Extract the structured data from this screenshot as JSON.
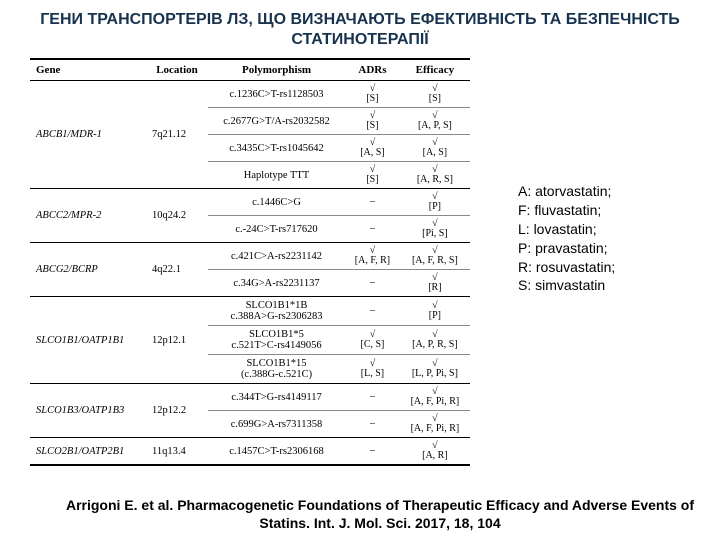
{
  "title": "ГЕНИ  ТРАНСПОРТЕРІВ ЛЗ, ЩО ВИЗНАЧАЮТЬ ЕФЕКТИВНІСТЬ ТА БЕЗПЕЧНІСТЬ СТАТИНОТЕРАПІЇ",
  "citation": "Arrigoni E. et al. Pharmacogenetic Foundations of Therapeutic Efficacy and Adverse Events of Statins. Int. J. Mol. Sci. 2017, 18, 104",
  "table": {
    "headers": {
      "gene": "Gene",
      "location": "Location",
      "polymorphism": "Polymorphism",
      "adrs": "ADRs",
      "efficacy": "Efficacy"
    },
    "symbols": {
      "check": "√",
      "dash": "–"
    },
    "rows": [
      {
        "gene": "ABCB1/MDR-1",
        "location": "7q21.12",
        "polymorphism": "c.1236C>T-rs1128503",
        "adrs_check": "√",
        "adrs_list": "[S]",
        "eff_check": "√",
        "eff_list": "[S]",
        "group_start": true,
        "rowspan": 4
      },
      {
        "polymorphism": "c.2677G>T/A-rs2032582",
        "adrs_check": "√",
        "adrs_list": "[S]",
        "eff_check": "√",
        "eff_list": "[A, P, S]"
      },
      {
        "polymorphism": "c.3435C>T-rs1045642",
        "adrs_check": "√",
        "adrs_list": "[A, S]",
        "eff_check": "√",
        "eff_list": "[A, S]"
      },
      {
        "polymorphism": "Haplotype TTT",
        "adrs_check": "√",
        "adrs_list": "[S]",
        "eff_check": "√",
        "eff_list": "[A, R, S]"
      },
      {
        "gene": "ABCC2/MPR-2",
        "location": "10q24.2",
        "polymorphism": "c.1446C>G",
        "adrs_check": "–",
        "adrs_list": "",
        "eff_check": "√",
        "eff_list": "[P]",
        "group_start": true,
        "rowspan": 2
      },
      {
        "polymorphism": "c.-24C>T-rs717620",
        "adrs_check": "–",
        "adrs_list": "",
        "eff_check": "√",
        "eff_list": "[Pi, S]"
      },
      {
        "gene": "ABCG2/BCRP",
        "location": "4q22.1",
        "polymorphism": "c.421C>A-rs2231142",
        "adrs_check": "√",
        "adrs_list": "[A, F, R]",
        "eff_check": "√",
        "eff_list": "[A, F, R, S]",
        "group_start": true,
        "rowspan": 2
      },
      {
        "polymorphism": "c.34G>A-rs2231137",
        "adrs_check": "–",
        "adrs_list": "",
        "eff_check": "√",
        "eff_list": "[R]"
      },
      {
        "gene": "SLCO1B1/OATP1B1",
        "location": "12p12.1",
        "polymorphism": "SLCO1B1*1B\nc.388A>G-rs2306283",
        "adrs_check": "–",
        "adrs_list": "",
        "eff_check": "√",
        "eff_list": "[P]",
        "group_start": true,
        "rowspan": 3
      },
      {
        "polymorphism": "SLCO1B1*5\nc.521T>C-rs4149056",
        "adrs_check": "√",
        "adrs_list": "[C, S]",
        "eff_check": "√",
        "eff_list": "[A, P, R, S]"
      },
      {
        "polymorphism": "SLCO1B1*15\n(c.388G-c.521C)",
        "adrs_check": "√",
        "adrs_list": "[L, S]",
        "eff_check": "√",
        "eff_list": "[L, P, Pi, S]"
      },
      {
        "gene": "SLCO1B3/OATP1B3",
        "location": "12p12.2",
        "polymorphism": "c.344T>G-rs4149117",
        "adrs_check": "–",
        "adrs_list": "",
        "eff_check": "√",
        "eff_list": "[A, F, Pi, R]",
        "group_start": true,
        "rowspan": 2
      },
      {
        "polymorphism": "c.699G>A-rs7311358",
        "adrs_check": "–",
        "adrs_list": "",
        "eff_check": "√",
        "eff_list": "[A, F, Pi, R]"
      },
      {
        "gene": "SLCO2B1/OATP2B1",
        "location": "11q13.4",
        "polymorphism": "c.1457C>T-rs2306168",
        "adrs_check": "–",
        "adrs_list": "",
        "eff_check": "√",
        "eff_list": "[A, R]",
        "group_start": true,
        "rowspan": 1
      }
    ]
  },
  "legend": [
    "A: atorvastatin;",
    "F: fluvastatin;",
    "L: lovastatin;",
    "P: pravastatin;",
    "R: rosuvastatin;",
    "S: simvastatin"
  ]
}
